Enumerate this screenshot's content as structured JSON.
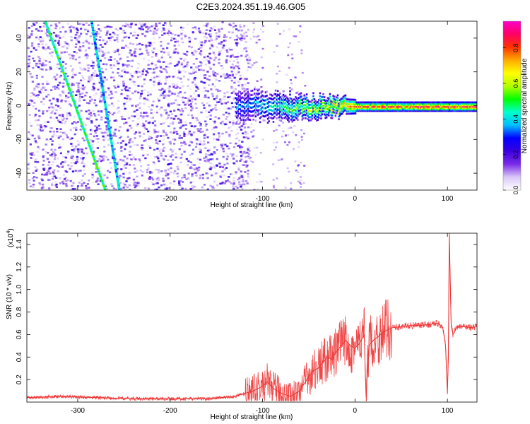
{
  "title": "C2E3.2024.351.19.46.G05",
  "chart_data": [
    {
      "type": "heatmap",
      "xlabel": "Height of straight line (km)",
      "ylabel": "Frequency (Hz)",
      "xlim": [
        -355,
        132
      ],
      "ylim": [
        -50,
        50
      ],
      "xticks": [
        -300,
        -200,
        -100,
        0,
        100
      ],
      "xtick_labels": [
        "-300",
        "-200",
        "-100",
        "0",
        "100"
      ],
      "yticks": [
        -40,
        -20,
        0,
        20,
        40
      ],
      "ytick_labels": [
        "-40",
        "-20",
        "0",
        "20",
        "40"
      ],
      "colorbar": {
        "label": "Normalized spectral amplitude",
        "range": [
          0,
          0.95
        ],
        "ticks": [
          0.0,
          0.2,
          0.4,
          0.6,
          0.8
        ],
        "tick_labels": [
          "0.0",
          "0.2",
          "0.4",
          "0.6",
          "0.8"
        ],
        "colors": [
          "#ffffff",
          "#d9c8f8",
          "#7a2be8",
          "#3a00e0",
          "#0000ff",
          "#00bfff",
          "#00ffcc",
          "#00ff00",
          "#b5ff00",
          "#ffff00",
          "#ffaa00",
          "#ff3300",
          "#ff0066",
          "#ff00c8"
        ]
      },
      "features": [
        {
          "kind": "band",
          "x_range": [
            -130,
            132
          ],
          "frequency": 0,
          "peak_amplitude": 0.95
        },
        {
          "kind": "streak",
          "from": [
            -335,
            50
          ],
          "to": [
            -270,
            -50
          ],
          "amplitude": 0.4
        },
        {
          "kind": "streak",
          "from": [
            -285,
            50
          ],
          "to": [
            -255,
            -50
          ],
          "amplitude": 0.3
        }
      ]
    },
    {
      "type": "line",
      "xlabel": "Height of straight line (km)",
      "ylabel": "SNR (10 * v/v)",
      "ylabel_multiplier": "(x10",
      "ylabel_exponent": "4",
      "ylabel_multiplier_close": ")",
      "xlim": [
        -355,
        132
      ],
      "ylim": [
        0,
        1.5
      ],
      "xticks": [
        -300,
        -200,
        -100,
        0,
        100
      ],
      "xtick_labels": [
        "-300",
        "-200",
        "-100",
        "0",
        "100"
      ],
      "yticks": [
        0.2,
        0.4,
        0.6,
        0.8,
        1.0,
        1.2,
        1.4
      ],
      "ytick_labels": [
        "0.2",
        "0.4",
        "0.6",
        "0.8",
        "1.0",
        "1.2",
        "1.4"
      ],
      "series": [
        {
          "color": "#ee3333",
          "x": [
            -355,
            -320,
            -280,
            -240,
            -200,
            -160,
            -130,
            -110,
            -100,
            -95,
            -88,
            -80,
            -70,
            -60,
            -52,
            -45,
            -40,
            -35,
            -30,
            -25,
            -20,
            -15,
            -10,
            -5,
            0,
            5,
            10,
            12,
            15,
            20,
            25,
            30,
            40,
            50,
            60,
            70,
            80,
            90,
            95,
            98,
            100,
            101,
            102,
            104,
            106,
            110,
            115,
            120,
            125,
            132
          ],
          "y": [
            0.04,
            0.05,
            0.04,
            0.03,
            0.03,
            0.03,
            0.05,
            0.1,
            0.14,
            0.18,
            0.12,
            0.08,
            0.05,
            0.1,
            0.2,
            0.28,
            0.3,
            0.35,
            0.4,
            0.38,
            0.45,
            0.5,
            0.55,
            0.5,
            0.48,
            0.52,
            0.6,
            0.05,
            0.5,
            0.55,
            0.58,
            0.62,
            0.66,
            0.67,
            0.68,
            0.68,
            0.69,
            0.7,
            0.66,
            0.5,
            0.08,
            0.4,
            1.5,
            0.7,
            0.6,
            0.66,
            0.67,
            0.67,
            0.66,
            0.67
          ]
        }
      ]
    }
  ]
}
